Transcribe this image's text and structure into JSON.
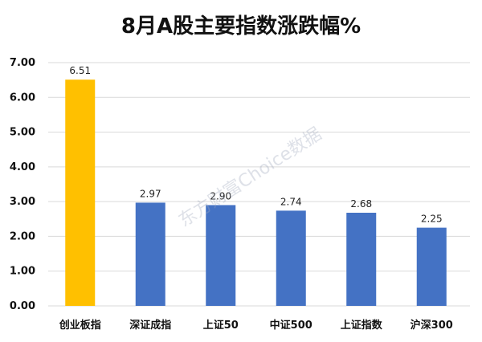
{
  "chart_data": {
    "type": "bar",
    "title": "8月A股主要指数涨跌幅%",
    "categories": [
      "创业板指",
      "深证成指",
      "上证50",
      "中证500",
      "上证指数",
      "沪深300"
    ],
    "values": [
      6.51,
      2.97,
      2.9,
      2.74,
      2.68,
      2.25
    ],
    "value_labels": [
      "6.51",
      "2.97",
      "2.90",
      "2.74",
      "2.68",
      "2.25"
    ],
    "ylim": [
      0,
      7
    ],
    "yticks": [
      "0.00",
      "1.00",
      "2.00",
      "3.00",
      "4.00",
      "5.00",
      "6.00",
      "7.00"
    ],
    "grid": true,
    "colors": {
      "highlight": "#FFC000",
      "bar": "#4472C4",
      "grid": "#D9D9D9"
    },
    "highlight_index": 0
  },
  "watermark": "东方财富Choice数据"
}
